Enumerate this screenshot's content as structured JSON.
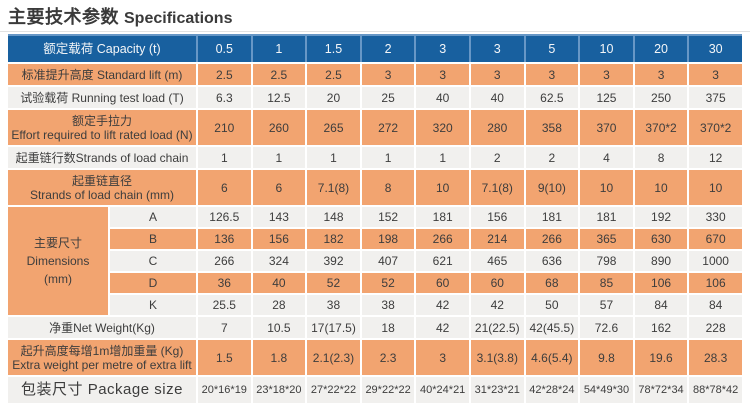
{
  "title": {
    "zh": "主要技术参数",
    "en": "Specifications"
  },
  "colors": {
    "header_blue": "#18609f",
    "header_separator_blue": "#6797c6",
    "row_orange": "#f2a470",
    "row_light": "#f1f0ee",
    "text_dark": "#3d3d3d",
    "header_text": "#f4f6f8",
    "title_text": "#3a3a3a"
  },
  "table": {
    "header": {
      "id": "capacity",
      "label": "额定载荷  Capacity (t)",
      "values": [
        "0.5",
        "1",
        "1.5",
        "2",
        "3",
        "3",
        "5",
        "10",
        "20",
        "30"
      ]
    },
    "body_rows_top": [
      {
        "id": "standard-lift",
        "style": "orange",
        "tall": false,
        "labels": [
          "标准提升高度   Standard lift (m)"
        ],
        "values": [
          "2.5",
          "2.5",
          "2.5",
          "3",
          "3",
          "3",
          "3",
          "3",
          "3",
          "3"
        ]
      },
      {
        "id": "running-test-load",
        "style": "light",
        "tall": false,
        "labels": [
          "试验载荷  Running test load (T)"
        ],
        "values": [
          "6.3",
          "12.5",
          "20",
          "25",
          "40",
          "40",
          "62.5",
          "125",
          "250",
          "375"
        ]
      },
      {
        "id": "rated-effort",
        "style": "orange",
        "tall": true,
        "labels": [
          "额定手拉力",
          "Effort required to lift rated load (N)"
        ],
        "values": [
          "210",
          "260",
          "265",
          "272",
          "320",
          "280",
          "358",
          "370",
          "370*2",
          "370*2"
        ]
      },
      {
        "id": "strands-of-load-chain",
        "style": "light",
        "tall": false,
        "labels": [
          "起重链行数Strands of load chain"
        ],
        "values": [
          "1",
          "1",
          "1",
          "1",
          "1",
          "2",
          "2",
          "4",
          "8",
          "12"
        ]
      },
      {
        "id": "chain-diameter",
        "style": "orange",
        "tall": true,
        "labels": [
          "起重链直径",
          "Strands of load chain (mm)"
        ],
        "values": [
          "6",
          "6",
          "7.1(8)",
          "8",
          "10",
          "7.1(8)",
          "9(10)",
          "10",
          "10",
          "10"
        ]
      }
    ],
    "dimensions": {
      "group_labels": [
        "主要尺寸",
        "Dimensions",
        "(mm)"
      ],
      "rows": [
        {
          "id": "dim-a",
          "key": "A",
          "style": "light",
          "values": [
            "126.5",
            "143",
            "148",
            "152",
            "181",
            "156",
            "181",
            "181",
            "192",
            "330"
          ]
        },
        {
          "id": "dim-b",
          "key": "B",
          "style": "orange",
          "values": [
            "136",
            "156",
            "182",
            "198",
            "266",
            "214",
            "266",
            "365",
            "630",
            "670"
          ]
        },
        {
          "id": "dim-c",
          "key": "C",
          "style": "light",
          "values": [
            "266",
            "324",
            "392",
            "407",
            "621",
            "465",
            "636",
            "798",
            "890",
            "1000"
          ]
        },
        {
          "id": "dim-d",
          "key": "D",
          "style": "orange",
          "values": [
            "36",
            "40",
            "52",
            "52",
            "60",
            "60",
            "68",
            "85",
            "106",
            "106"
          ]
        },
        {
          "id": "dim-k",
          "key": "K",
          "style": "light",
          "values": [
            "25.5",
            "28",
            "38",
            "38",
            "42",
            "42",
            "50",
            "57",
            "84",
            "84"
          ]
        }
      ]
    },
    "body_rows_bottom": [
      {
        "id": "net-weight",
        "style": "light",
        "tall": false,
        "labels": [
          "净重Net Weight(Kg)"
        ],
        "values": [
          "7",
          "10.5",
          "17(17.5)",
          "18",
          "42",
          "21(22.5)",
          "42(45.5)",
          "72.6",
          "162",
          "228"
        ]
      },
      {
        "id": "extra-weight",
        "style": "orange",
        "tall": true,
        "labels": [
          "起升高度每增1m增加重量 (Kg)",
          "Extra weight per metre of extra lift"
        ],
        "values": [
          "1.5",
          "1.8",
          "2.1(2.3)",
          "2.3",
          "3",
          "3.1(3.8)",
          "4.6(5.4)",
          "9.8",
          "19.6",
          "28.3"
        ]
      },
      {
        "id": "package-size",
        "style": "light",
        "tall": false,
        "big_label": true,
        "labels": [
          "包装尺寸 Package size"
        ],
        "values": [
          "20*16*19",
          "23*18*20",
          "27*22*22",
          "29*22*22",
          "40*24*21",
          "31*23*21",
          "42*28*24",
          "54*49*30",
          "78*72*34",
          "88*78*42"
        ]
      }
    ]
  }
}
